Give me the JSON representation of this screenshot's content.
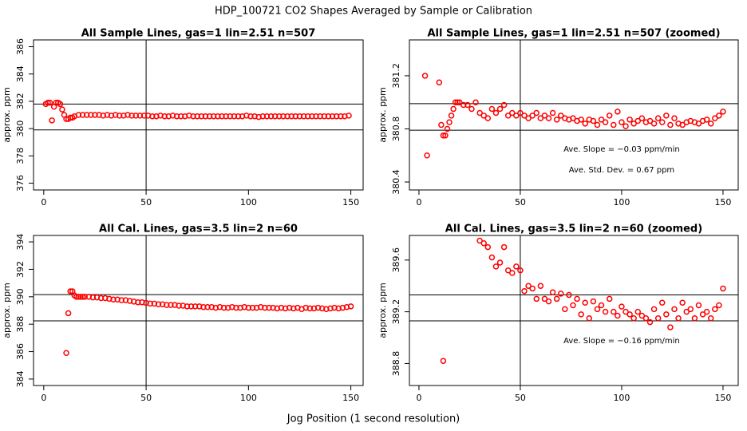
{
  "title": "HDP_100721  CO2 Shapes Averaged by Sample or Calibration",
  "xlabel": "Jog Position (1 second resolution)",
  "chart_data": [
    {
      "type": "scatter",
      "title": "All Sample Lines, gas=1 lin=2.51 n=507",
      "ylabel": "approx. ppm",
      "color": "#ff0000",
      "xlim": [
        -5,
        156
      ],
      "ylim": [
        375.5,
        386.5
      ],
      "xticks": [
        0,
        50,
        100,
        150
      ],
      "yticks": [
        376,
        378,
        380,
        382,
        384,
        386
      ],
      "hlines": [
        381.8,
        379.9
      ],
      "vlines": [
        50
      ],
      "x": [
        1,
        2,
        3,
        4,
        5,
        6,
        7,
        8,
        9,
        10,
        11,
        12,
        13,
        14,
        15,
        17,
        19,
        21,
        23,
        25,
        27,
        29,
        31,
        33,
        35,
        37,
        39,
        41,
        43,
        45,
        47,
        49,
        51,
        53,
        55,
        57,
        59,
        61,
        63,
        65,
        67,
        69,
        71,
        73,
        75,
        77,
        79,
        81,
        83,
        85,
        87,
        89,
        91,
        93,
        95,
        97,
        99,
        101,
        103,
        105,
        107,
        109,
        111,
        113,
        115,
        117,
        119,
        121,
        123,
        125,
        127,
        129,
        131,
        133,
        135,
        137,
        139,
        141,
        143,
        145,
        147,
        149
      ],
      "values": [
        381.8,
        381.9,
        381.9,
        380.6,
        381.6,
        381.9,
        381.9,
        381.8,
        381.4,
        381.0,
        380.7,
        380.7,
        380.8,
        380.8,
        380.9,
        381.0,
        381.0,
        381.0,
        381.0,
        381.0,
        381.0,
        380.95,
        381.0,
        380.95,
        381.0,
        380.95,
        380.95,
        381.0,
        380.95,
        380.95,
        380.95,
        380.95,
        380.95,
        380.9,
        380.9,
        380.95,
        380.9,
        380.9,
        380.95,
        380.9,
        380.9,
        380.9,
        380.95,
        380.9,
        380.9,
        380.9,
        380.9,
        380.9,
        380.9,
        380.9,
        380.9,
        380.9,
        380.9,
        380.9,
        380.9,
        380.9,
        380.95,
        380.9,
        380.9,
        380.85,
        380.9,
        380.9,
        380.9,
        380.9,
        380.9,
        380.9,
        380.9,
        380.9,
        380.9,
        380.9,
        380.9,
        380.9,
        380.9,
        380.9,
        380.9,
        380.9,
        380.9,
        380.9,
        380.9,
        380.9,
        380.9,
        380.95
      ],
      "annotations": []
    },
    {
      "type": "scatter",
      "title": "All Sample Lines, gas=1 lin=2.51 n=507 (zoomed)",
      "ylabel": "approx. ppm",
      "color": "#ff0000",
      "xlim": [
        -4.7,
        157.5
      ],
      "ylim": [
        380.34,
        381.47
      ],
      "xticks": [
        0,
        50,
        100,
        150
      ],
      "yticks": [
        380.4,
        380.8,
        381.2
      ],
      "hlines": [
        380.99,
        380.79
      ],
      "vlines": [
        50
      ],
      "x": [
        3,
        4,
        10,
        11,
        12,
        13,
        14,
        15,
        16,
        17,
        18,
        19,
        20,
        22,
        24,
        26,
        28,
        30,
        32,
        34,
        36,
        38,
        40,
        42,
        44,
        46,
        48,
        50,
        52,
        54,
        56,
        58,
        60,
        62,
        64,
        66,
        68,
        70,
        72,
        74,
        76,
        78,
        80,
        82,
        84,
        86,
        88,
        90,
        92,
        94,
        96,
        98,
        100,
        102,
        104,
        106,
        108,
        110,
        112,
        114,
        116,
        118,
        120,
        122,
        124,
        126,
        128,
        130,
        132,
        134,
        136,
        138,
        140,
        142,
        144,
        146,
        148,
        150
      ],
      "values": [
        381.2,
        380.6,
        381.15,
        380.83,
        380.75,
        380.75,
        380.8,
        380.85,
        380.9,
        380.95,
        381.0,
        381.0,
        381.0,
        380.98,
        380.98,
        380.95,
        381.0,
        380.92,
        380.9,
        380.88,
        380.95,
        380.92,
        380.95,
        380.98,
        380.9,
        380.92,
        380.9,
        380.92,
        380.9,
        380.88,
        380.9,
        380.92,
        380.88,
        380.9,
        380.88,
        380.92,
        380.87,
        380.9,
        380.88,
        380.87,
        380.88,
        380.86,
        380.87,
        380.84,
        380.87,
        380.86,
        380.83,
        380.87,
        380.85,
        380.9,
        380.83,
        380.93,
        380.85,
        380.82,
        380.87,
        380.84,
        380.86,
        380.88,
        380.85,
        380.86,
        380.84,
        380.88,
        380.85,
        380.9,
        380.83,
        380.88,
        380.84,
        380.83,
        380.85,
        380.86,
        380.85,
        380.84,
        380.86,
        380.87,
        380.84,
        380.88,
        380.9,
        380.93
      ],
      "annotations": [
        "Ave. Slope =  −0.03  ppm/min",
        "Ave. Std. Dev. =  0.67  ppm"
      ]
    },
    {
      "type": "scatter",
      "title": "All Cal. Lines, gas=3.5 lin=2 n=60",
      "ylabel": "approx. ppm",
      "color": "#ff0000",
      "xlim": [
        -5,
        156
      ],
      "ylim": [
        383.53,
        394.47
      ],
      "xticks": [
        0,
        50,
        100,
        150
      ],
      "yticks": [
        384,
        386,
        388,
        390,
        392,
        394
      ],
      "hlines": [
        390.16,
        388.24
      ],
      "vlines": [
        50
      ],
      "x": [
        11,
        12,
        13,
        14,
        15,
        16,
        17,
        18,
        19,
        20,
        22,
        24,
        26,
        28,
        30,
        32,
        34,
        36,
        38,
        40,
        42,
        44,
        46,
        48,
        50,
        52,
        54,
        56,
        58,
        60,
        62,
        64,
        66,
        68,
        70,
        72,
        74,
        76,
        78,
        80,
        82,
        84,
        86,
        88,
        90,
        92,
        94,
        96,
        98,
        100,
        102,
        104,
        106,
        108,
        110,
        112,
        114,
        116,
        118,
        120,
        122,
        124,
        126,
        128,
        130,
        132,
        134,
        136,
        138,
        140,
        142,
        144,
        146,
        148,
        150
      ],
      "values": [
        385.9,
        388.8,
        390.4,
        390.4,
        390.1,
        390.0,
        390.0,
        390.0,
        390.0,
        390.0,
        390.0,
        389.95,
        389.95,
        389.9,
        389.9,
        389.85,
        389.8,
        389.8,
        389.75,
        389.75,
        389.7,
        389.65,
        389.6,
        389.6,
        389.55,
        389.5,
        389.5,
        389.45,
        389.45,
        389.4,
        389.4,
        389.4,
        389.35,
        389.35,
        389.3,
        389.3,
        389.3,
        389.3,
        389.25,
        389.25,
        389.25,
        389.2,
        389.25,
        389.2,
        389.2,
        389.25,
        389.2,
        389.2,
        389.25,
        389.2,
        389.2,
        389.2,
        389.25,
        389.2,
        389.2,
        389.2,
        389.15,
        389.2,
        389.15,
        389.2,
        389.15,
        389.2,
        389.1,
        389.2,
        389.15,
        389.15,
        389.2,
        389.15,
        389.1,
        389.15,
        389.2,
        389.15,
        389.2,
        389.25,
        389.3
      ],
      "annotations": []
    },
    {
      "type": "scatter",
      "title": "All Cal. Lines, gas=3.5 lin=2 n=60 (zoomed)",
      "ylabel": "approx. ppm",
      "color": "#ff0000",
      "xlim": [
        -4.7,
        157.5
      ],
      "ylim": [
        388.63,
        389.79
      ],
      "xticks": [
        0,
        50,
        100,
        150
      ],
      "yticks": [
        388.8,
        389.2,
        389.6
      ],
      "hlines": [
        389.33,
        389.13
      ],
      "vlines": [
        50
      ],
      "x": [
        12,
        30,
        32,
        34,
        36,
        38,
        40,
        42,
        44,
        46,
        48,
        50,
        52,
        54,
        56,
        58,
        60,
        62,
        64,
        66,
        68,
        70,
        72,
        74,
        76,
        78,
        80,
        82,
        84,
        86,
        88,
        90,
        92,
        94,
        96,
        98,
        100,
        102,
        104,
        106,
        108,
        110,
        112,
        114,
        116,
        118,
        120,
        122,
        124,
        126,
        128,
        130,
        132,
        134,
        136,
        138,
        140,
        142,
        144,
        146,
        148,
        150
      ],
      "values": [
        388.82,
        389.75,
        389.73,
        389.7,
        389.62,
        389.55,
        389.58,
        389.7,
        389.52,
        389.5,
        389.55,
        389.52,
        389.36,
        389.4,
        389.38,
        389.3,
        389.4,
        389.3,
        389.28,
        389.35,
        389.3,
        389.34,
        389.22,
        389.33,
        389.25,
        389.3,
        389.18,
        389.27,
        389.15,
        389.28,
        389.22,
        389.25,
        389.2,
        389.3,
        389.2,
        389.17,
        389.24,
        389.2,
        389.18,
        389.15,
        389.2,
        389.17,
        389.15,
        389.12,
        389.22,
        389.15,
        389.27,
        389.18,
        389.08,
        389.22,
        389.15,
        389.27,
        389.2,
        389.22,
        389.15,
        389.25,
        389.18,
        389.2,
        389.15,
        389.22,
        389.25,
        389.38
      ],
      "annotations": [
        "Ave. Slope =  −0.16  ppm/min"
      ]
    }
  ]
}
